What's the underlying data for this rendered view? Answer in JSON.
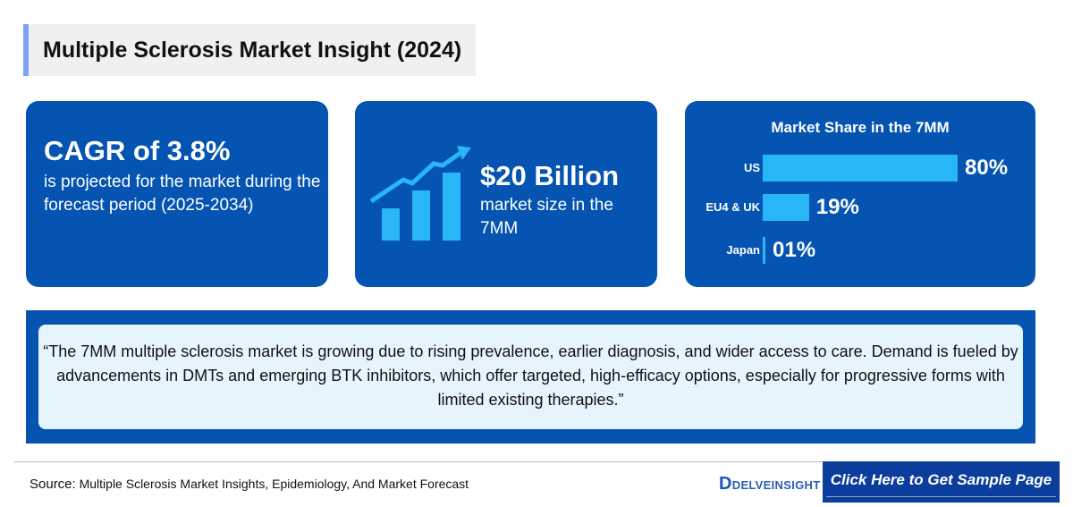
{
  "title": "Multiple Sclerosis Market Insight (2024)",
  "cagr": {
    "headline": "CAGR of 3.8%",
    "text": "is projected for the market during the forecast period (2025-2034)"
  },
  "market_size": {
    "icon": "growth-chart-icon",
    "headline": "$20 Billion",
    "text": "market size in the 7MM"
  },
  "chart_data": {
    "type": "bar",
    "title": "Market Share in the 7MM",
    "categories": [
      "US",
      "EU4 & UK",
      "Japan"
    ],
    "values": [
      80,
      19,
      1
    ],
    "labels": [
      "80%",
      "19%",
      "01%"
    ],
    "bar_color": "#29b6f6"
  },
  "quote": "“The 7MM multiple sclerosis market is growing due to rising prevalence, earlier diagnosis, and wider access to care. Demand is fueled by advancements in DMTs and emerging BTK inhibitors, which offer targeted, high-efficacy options, especially for progressive forms with limited existing therapies.”",
  "footer": {
    "source_label": "Source:",
    "source_text": "Multiple Sclerosis Market Insights, Epidemiology, And Market Forecast",
    "logo": "DELVEINSIGHT",
    "cta": "Click Here to Get Sample Page"
  }
}
